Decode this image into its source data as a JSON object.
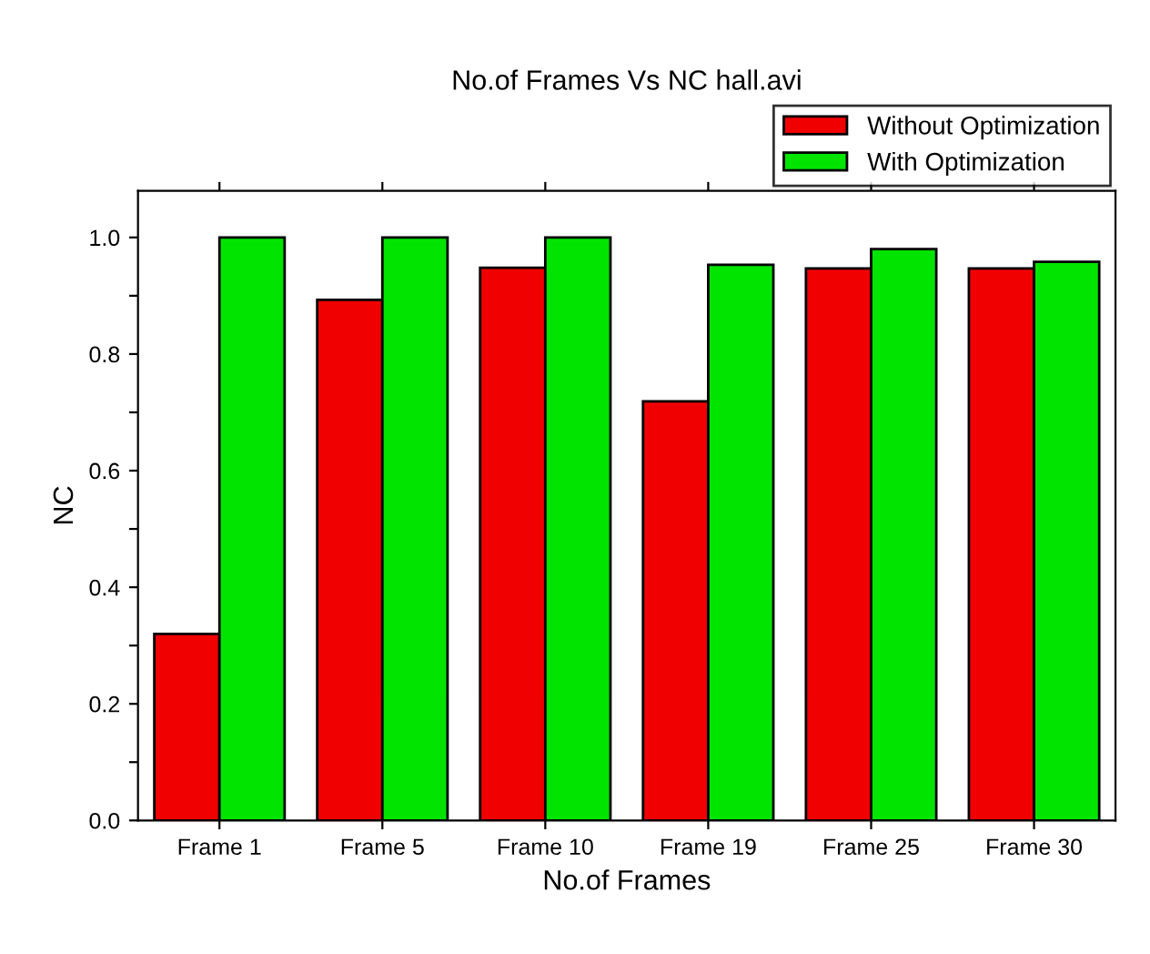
{
  "chart_data": {
    "type": "bar",
    "title": "No.of Frames Vs NC hall.avi",
    "xlabel": "No.of Frames",
    "ylabel": "NC",
    "categories": [
      "Frame 1",
      "Frame 5",
      "Frame 10",
      "Frame 19",
      "Frame 25",
      "Frame 30"
    ],
    "series": [
      {
        "name": "Without Optimization",
        "color": "#f00000",
        "values": [
          0.32,
          0.893,
          0.948,
          0.719,
          0.947,
          0.947
        ]
      },
      {
        "name": "With Optimization",
        "color": "#00e400",
        "values": [
          1.0,
          1.0,
          1.0,
          0.953,
          0.98,
          0.958
        ]
      }
    ],
    "ylim": [
      0,
      1.08
    ],
    "yticks": [
      {
        "value": 0,
        "label": "0.0"
      },
      {
        "value": 0.1,
        "label": null
      },
      {
        "value": 0.2,
        "label": "0.2"
      },
      {
        "value": 0.3,
        "label": null
      },
      {
        "value": 0.4,
        "label": "0.4"
      },
      {
        "value": 0.5,
        "label": null
      },
      {
        "value": 0.6,
        "label": "0.6"
      },
      {
        "value": 0.7,
        "label": null
      },
      {
        "value": 0.8,
        "label": "0.8"
      },
      {
        "value": 0.9,
        "label": null
      },
      {
        "value": 1.0,
        "label": "1.0"
      }
    ],
    "grid": false,
    "legend": "top right"
  }
}
